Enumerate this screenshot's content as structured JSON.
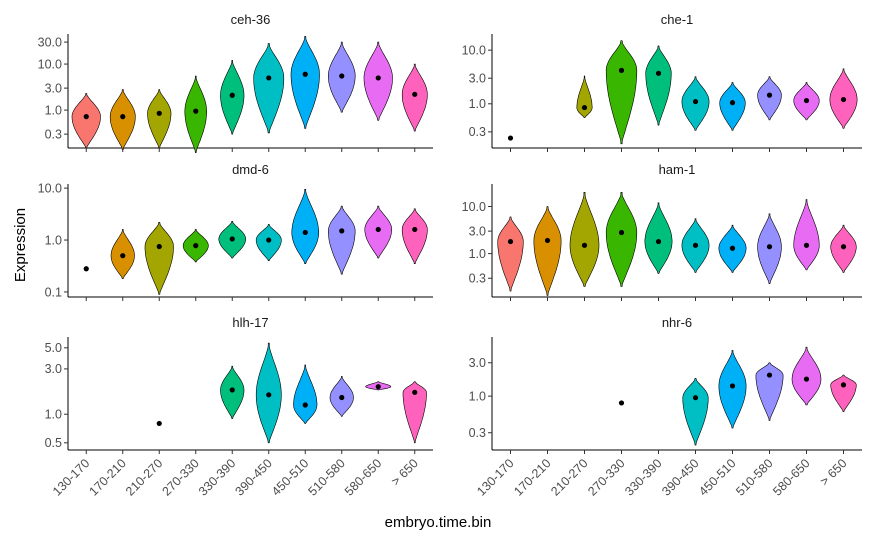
{
  "chart_data": {
    "type": "violin",
    "xlabel": "embryo.time.bin",
    "ylabel": "Expression",
    "y_scale": "log10",
    "grid": false,
    "legend": "none",
    "categories": [
      "130-170",
      "170-210",
      "210-270",
      "270-330",
      "330-390",
      "390-450",
      "450-510",
      "510-580",
      "580-650",
      "> 650"
    ],
    "colors": [
      "#F8766D",
      "#D89000",
      "#A3A500",
      "#39B600",
      "#00BF7D",
      "#00BFC4",
      "#00B0F6",
      "#9590FF",
      "#E76BF3",
      "#FF62BC"
    ],
    "panels": [
      {
        "name": "ceh-36",
        "yticks": [
          "0.3",
          "1.0",
          "3.0",
          "10.0",
          "30.0"
        ],
        "tick_values": [
          0.3,
          1.0,
          3.0,
          10.0,
          30.0
        ],
        "ylim": [
          0.15,
          45
        ],
        "violins": [
          {
            "category": "130-170",
            "min": 0.15,
            "max": 2.3,
            "median": 0.72,
            "width": 0.85
          },
          {
            "category": "170-210",
            "min": 0.14,
            "max": 2.8,
            "median": 0.72,
            "width": 0.75
          },
          {
            "category": "210-270",
            "min": 0.15,
            "max": 2.8,
            "median": 0.85,
            "width": 0.7
          },
          {
            "category": "270-330",
            "min": 0.12,
            "max": 5.5,
            "median": 0.95,
            "width": 0.65
          },
          {
            "category": "330-390",
            "min": 0.3,
            "max": 12.0,
            "median": 2.1,
            "width": 0.7
          },
          {
            "category": "390-450",
            "min": 0.32,
            "max": 28.0,
            "median": 5.0,
            "width": 0.9
          },
          {
            "category": "450-510",
            "min": 0.4,
            "max": 40.0,
            "median": 6.0,
            "width": 0.85
          },
          {
            "category": "510-580",
            "min": 0.9,
            "max": 30.0,
            "median": 5.5,
            "width": 0.8
          },
          {
            "category": "580-650",
            "min": 0.6,
            "max": 30.0,
            "median": 5.0,
            "width": 0.85
          },
          {
            "category": "> 650",
            "min": 0.35,
            "max": 10.0,
            "median": 2.2,
            "width": 0.75
          }
        ]
      },
      {
        "name": "che-1",
        "yticks": [
          "0.3",
          "1.0",
          "3.0",
          "10.0"
        ],
        "tick_values": [
          0.3,
          1.0,
          3.0,
          10.0
        ],
        "ylim": [
          0.15,
          20
        ],
        "violins": [
          {
            "category": "130-170",
            "min": 0.23,
            "max": 0.23,
            "median": 0.23,
            "width": 0
          },
          {
            "category": "170-210",
            "min": 0,
            "max": 0,
            "median": 0,
            "width": 0,
            "empty": true
          },
          {
            "category": "210-270",
            "min": 0.55,
            "max": 3.3,
            "median": 0.85,
            "width": 0.45
          },
          {
            "category": "270-330",
            "min": 0.18,
            "max": 15.0,
            "median": 4.2,
            "width": 0.9
          },
          {
            "category": "330-390",
            "min": 0.4,
            "max": 12.0,
            "median": 3.7,
            "width": 0.75
          },
          {
            "category": "390-450",
            "min": 0.32,
            "max": 3.2,
            "median": 1.1,
            "width": 0.8
          },
          {
            "category": "450-510",
            "min": 0.32,
            "max": 2.5,
            "median": 1.05,
            "width": 0.75
          },
          {
            "category": "510-580",
            "min": 0.5,
            "max": 3.2,
            "median": 1.45,
            "width": 0.7
          },
          {
            "category": "580-650",
            "min": 0.5,
            "max": 2.5,
            "median": 1.15,
            "width": 0.75
          },
          {
            "category": "> 650",
            "min": 0.35,
            "max": 4.5,
            "median": 1.2,
            "width": 0.8
          }
        ]
      },
      {
        "name": "dmd-6",
        "yticks": [
          "0.1",
          "1.0",
          "10.0"
        ],
        "tick_values": [
          0.1,
          1.0,
          10.0
        ],
        "ylim": [
          0.08,
          12
        ],
        "violins": [
          {
            "category": "130-170",
            "min": 0.28,
            "max": 0.28,
            "median": 0.28,
            "width": 0
          },
          {
            "category": "170-210",
            "min": 0.18,
            "max": 1.6,
            "median": 0.5,
            "width": 0.7
          },
          {
            "category": "210-270",
            "min": 0.09,
            "max": 2.2,
            "median": 0.75,
            "width": 0.85
          },
          {
            "category": "270-330",
            "min": 0.38,
            "max": 1.6,
            "median": 0.78,
            "width": 0.75
          },
          {
            "category": "330-390",
            "min": 0.45,
            "max": 2.3,
            "median": 1.05,
            "width": 0.8
          },
          {
            "category": "390-450",
            "min": 0.4,
            "max": 2.0,
            "median": 1.0,
            "width": 0.75
          },
          {
            "category": "450-510",
            "min": 0.35,
            "max": 9.5,
            "median": 1.4,
            "width": 0.8
          },
          {
            "category": "510-580",
            "min": 0.22,
            "max": 4.5,
            "median": 1.5,
            "width": 0.8
          },
          {
            "category": "580-650",
            "min": 0.45,
            "max": 4.5,
            "median": 1.6,
            "width": 0.8
          },
          {
            "category": "> 650",
            "min": 0.35,
            "max": 4.0,
            "median": 1.6,
            "width": 0.75
          }
        ]
      },
      {
        "name": "ham-1",
        "yticks": [
          "0.3",
          "1.0",
          "3.0",
          "10.0"
        ],
        "tick_values": [
          0.3,
          1.0,
          3.0,
          10.0
        ],
        "ylim": [
          0.12,
          30
        ],
        "violins": [
          {
            "category": "130-170",
            "min": 0.16,
            "max": 6.0,
            "median": 1.8,
            "width": 0.75
          },
          {
            "category": "170-210",
            "min": 0.13,
            "max": 10.0,
            "median": 1.9,
            "width": 0.8
          },
          {
            "category": "210-270",
            "min": 0.2,
            "max": 20.0,
            "median": 1.5,
            "width": 0.85
          },
          {
            "category": "270-330",
            "min": 0.2,
            "max": 20.0,
            "median": 2.8,
            "width": 0.9
          },
          {
            "category": "330-390",
            "min": 0.38,
            "max": 12.0,
            "median": 1.8,
            "width": 0.8
          },
          {
            "category": "390-450",
            "min": 0.4,
            "max": 5.5,
            "median": 1.5,
            "width": 0.8
          },
          {
            "category": "450-510",
            "min": 0.4,
            "max": 4.0,
            "median": 1.3,
            "width": 0.8
          },
          {
            "category": "510-580",
            "min": 0.23,
            "max": 7.0,
            "median": 1.4,
            "width": 0.7
          },
          {
            "category": "580-650",
            "min": 0.45,
            "max": 14.0,
            "median": 1.5,
            "width": 0.75
          },
          {
            "category": "> 650",
            "min": 0.4,
            "max": 4.0,
            "median": 1.4,
            "width": 0.75
          }
        ]
      },
      {
        "name": "hlh-17",
        "yticks": [
          "0.5",
          "1.0",
          "3.0",
          "5.0"
        ],
        "tick_values": [
          0.5,
          1.0,
          3.0,
          5.0
        ],
        "ylim": [
          0.42,
          6.5
        ],
        "violins": [
          {
            "category": "130-170",
            "min": 0,
            "max": 0,
            "median": 0,
            "width": 0,
            "empty": true
          },
          {
            "category": "170-210",
            "min": 0,
            "max": 0,
            "median": 0,
            "width": 0,
            "empty": true
          },
          {
            "category": "210-270",
            "min": 0.8,
            "max": 0.8,
            "median": 0.8,
            "width": 0
          },
          {
            "category": "270-330",
            "min": 0,
            "max": 0,
            "median": 0,
            "width": 0,
            "empty": true
          },
          {
            "category": "330-390",
            "min": 0.9,
            "max": 3.2,
            "median": 1.8,
            "width": 0.7
          },
          {
            "category": "390-450",
            "min": 0.5,
            "max": 5.6,
            "median": 1.6,
            "width": 0.75
          },
          {
            "category": "450-510",
            "min": 0.8,
            "max": 3.3,
            "median": 1.25,
            "width": 0.7
          },
          {
            "category": "510-580",
            "min": 0.95,
            "max": 2.5,
            "median": 1.5,
            "width": 0.7
          },
          {
            "category": "580-650",
            "min": 1.8,
            "max": 2.2,
            "median": 1.95,
            "width": 0.75
          },
          {
            "category": "> 650",
            "min": 0.5,
            "max": 2.2,
            "median": 1.7,
            "width": 0.7
          }
        ]
      },
      {
        "name": "nhr-6",
        "yticks": [
          "0.3",
          "1.0",
          "3.0"
        ],
        "tick_values": [
          0.3,
          1.0,
          3.0
        ],
        "ylim": [
          0.17,
          7
        ],
        "violins": [
          {
            "category": "130-170",
            "min": 0,
            "max": 0,
            "median": 0,
            "width": 0,
            "empty": true
          },
          {
            "category": "170-210",
            "min": 0,
            "max": 0,
            "median": 0,
            "width": 0,
            "empty": true
          },
          {
            "category": "210-270",
            "min": 0,
            "max": 0,
            "median": 0,
            "width": 0,
            "empty": true
          },
          {
            "category": "270-330",
            "min": 0.8,
            "max": 0.8,
            "median": 0.8,
            "width": 0
          },
          {
            "category": "330-390",
            "min": 0,
            "max": 0,
            "median": 0,
            "width": 0,
            "empty": true
          },
          {
            "category": "390-450",
            "min": 0.2,
            "max": 1.8,
            "median": 0.95,
            "width": 0.75
          },
          {
            "category": "450-510",
            "min": 0.35,
            "max": 4.5,
            "median": 1.4,
            "width": 0.8
          },
          {
            "category": "510-580",
            "min": 0.45,
            "max": 3.0,
            "median": 2.0,
            "width": 0.8
          },
          {
            "category": "580-650",
            "min": 0.75,
            "max": 5.0,
            "median": 1.75,
            "width": 0.85
          },
          {
            "category": "> 650",
            "min": 0.6,
            "max": 2.0,
            "median": 1.45,
            "width": 0.75
          }
        ]
      }
    ]
  }
}
